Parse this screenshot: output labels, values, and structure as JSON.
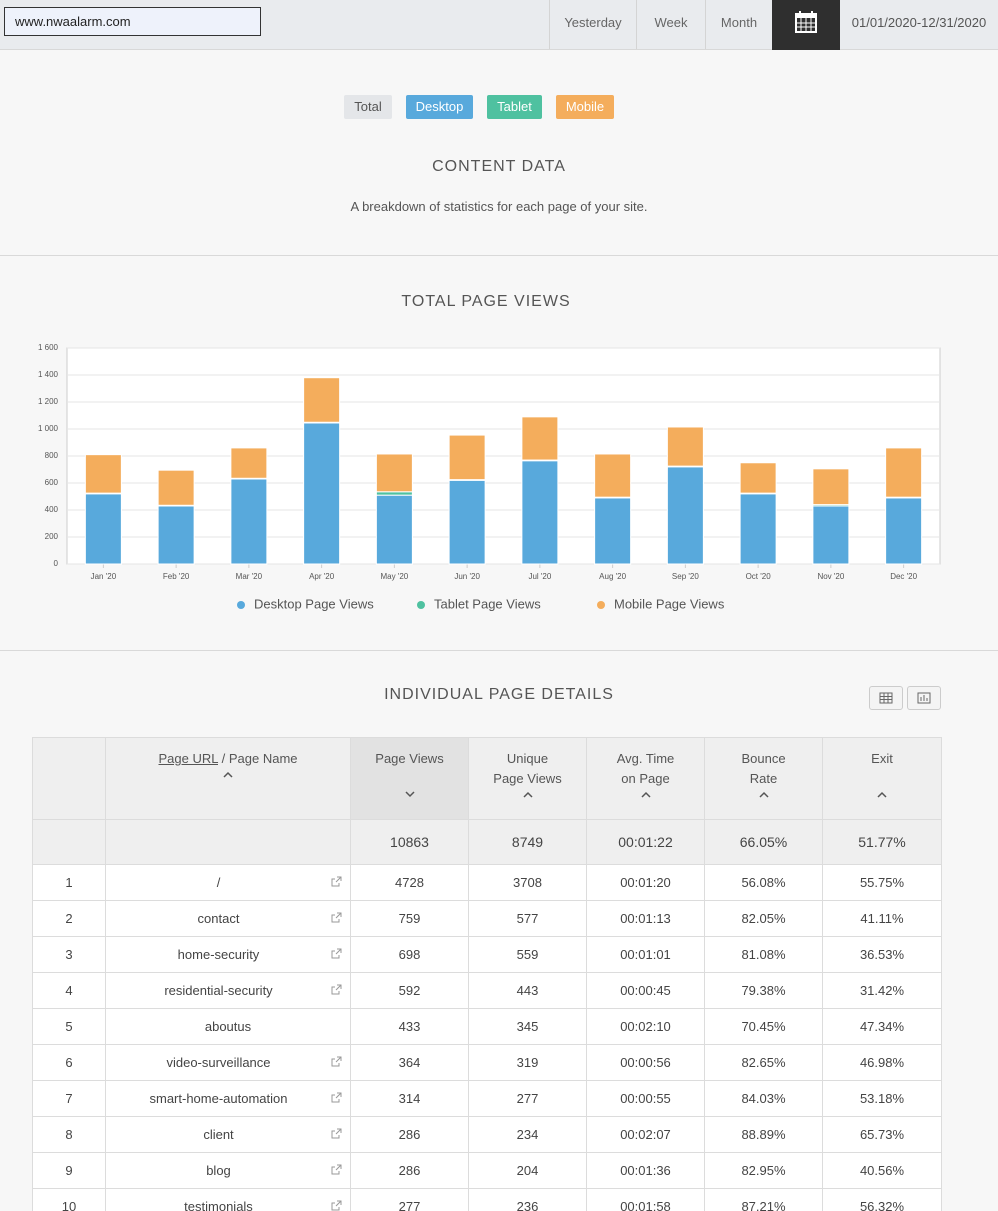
{
  "header": {
    "site": "www.nwaalarm.com",
    "periods": [
      "Yesterday",
      "Week",
      "Month"
    ],
    "date_range": "01/01/2020-12/31/2020"
  },
  "filters": [
    "Total",
    "Desktop",
    "Tablet",
    "Mobile"
  ],
  "content": {
    "title": "CONTENT DATA",
    "subtitle": "A breakdown of statistics for each page of your site."
  },
  "chart_data": {
    "type": "stacked-bar",
    "title": "TOTAL PAGE VIEWS",
    "categories": [
      "Jan '20",
      "Feb '20",
      "Mar '20",
      "Apr '20",
      "May '20",
      "Jun '20",
      "Jul '20",
      "Aug '20",
      "Sep '20",
      "Oct '20",
      "Nov '20",
      "Dec '20"
    ],
    "series": [
      {
        "name": "Desktop Page Views",
        "color": "#58a9dc",
        "values": [
          520,
          430,
          630,
          1045,
          510,
          620,
          765,
          490,
          720,
          520,
          430,
          490
        ]
      },
      {
        "name": "Tablet Page Views",
        "color": "#4fc1a0",
        "values": [
          5,
          5,
          5,
          5,
          25,
          5,
          5,
          5,
          5,
          5,
          10,
          5
        ]
      },
      {
        "name": "Mobile Page Views",
        "color": "#f4ad5c",
        "values": [
          285,
          260,
          225,
          330,
          280,
          330,
          320,
          320,
          290,
          225,
          265,
          365
        ]
      }
    ],
    "ylim": [
      0,
      1600
    ],
    "yticks": [
      0,
      200,
      400,
      600,
      800,
      {
        "value": 1000,
        "label": "1 000"
      },
      {
        "value": 1200,
        "label": "1 200"
      },
      {
        "value": 1400,
        "label": "1 400"
      },
      {
        "value": 1600,
        "label": "1 600"
      }
    ],
    "grid": true,
    "legend": "bottom"
  },
  "details": {
    "title": "INDIVIDUAL PAGE DETAILS",
    "table": {
      "header": {
        "url": "Page URL",
        "name": "/ Page Name",
        "columns": [
          "Page Views",
          "Unique Page Views",
          "Avg. Time on Page",
          "Bounce Rate",
          "Exit"
        ]
      },
      "totals": [
        "10863",
        "8749",
        "00:01:22",
        "66.05%",
        "51.77%"
      ],
      "rows": [
        [
          "1",
          "/",
          "4728",
          "3708",
          "00:01:20",
          "56.08%",
          "55.75%"
        ],
        [
          "2",
          "contact",
          "759",
          "577",
          "00:01:13",
          "82.05%",
          "41.11%"
        ],
        [
          "3",
          "home-security",
          "698",
          "559",
          "00:01:01",
          "81.08%",
          "36.53%"
        ],
        [
          "4",
          "residential-security",
          "592",
          "443",
          "00:00:45",
          "79.38%",
          "31.42%"
        ],
        [
          "5",
          "aboutus",
          "433",
          "345",
          "00:02:10",
          "70.45%",
          "47.34%"
        ],
        [
          "6",
          "video-surveillance",
          "364",
          "319",
          "00:00:56",
          "82.65%",
          "46.98%"
        ],
        [
          "7",
          "smart-home-automation",
          "314",
          "277",
          "00:00:55",
          "84.03%",
          "53.18%"
        ],
        [
          "8",
          "client",
          "286",
          "234",
          "00:02:07",
          "88.89%",
          "65.73%"
        ],
        [
          "9",
          "blog",
          "286",
          "204",
          "00:01:36",
          "82.95%",
          "40.56%"
        ],
        [
          "10",
          "testimonials",
          "277",
          "236",
          "00:01:58",
          "87.21%",
          "56.32%"
        ]
      ],
      "external_link": [
        true,
        true,
        true,
        true,
        false,
        true,
        true,
        true,
        true,
        true
      ]
    }
  }
}
